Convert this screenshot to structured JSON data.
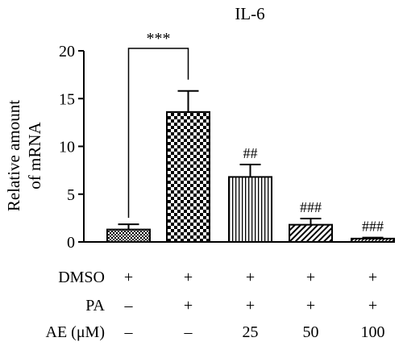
{
  "chart_data": {
    "type": "bar",
    "title": "IL-6",
    "ylabel_lines": [
      "Relative amount",
      "of mRNA"
    ],
    "ylim": [
      0,
      20
    ],
    "yticks": [
      0,
      5,
      10,
      15,
      20
    ],
    "grid": false,
    "categories": [
      "DMSO+ PA− AE−",
      "DMSO+ PA+ AE−",
      "DMSO+ PA+ AE 25",
      "DMSO+ PA+ AE 50",
      "DMSO+ PA+ AE 100"
    ],
    "values": [
      1.3,
      13.6,
      6.8,
      1.8,
      0.35
    ],
    "errors": [
      0.55,
      2.2,
      1.3,
      0.65,
      0.1
    ],
    "patterns": [
      "fine-checker",
      "coarse-checker",
      "vertical-stripes",
      "diagonal-stripes",
      "diagonal-dense"
    ],
    "significance": [
      {
        "bar": 2,
        "text": "##"
      },
      {
        "bar": 3,
        "text": "###"
      },
      {
        "bar": 4,
        "text": "###"
      }
    ],
    "comparison": {
      "from": 0,
      "to": 1,
      "text": "***"
    },
    "conditions": [
      {
        "label": "DMSO",
        "values": [
          "+",
          "+",
          "+",
          "+",
          "+"
        ]
      },
      {
        "label": "PA",
        "values": [
          "–",
          "+",
          "+",
          "+",
          "+"
        ]
      },
      {
        "label": "AE (μM)",
        "values": [
          "–",
          "–",
          "25",
          "50",
          "100"
        ]
      }
    ]
  }
}
